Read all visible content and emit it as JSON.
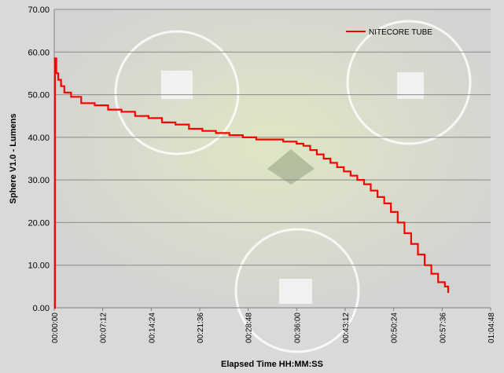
{
  "chart_data": {
    "type": "line",
    "title": "",
    "xlabel": "Elapsed Time HH:MM:SS",
    "ylabel": "Sphere V1.0 - Lumens",
    "xlim_minutes": [
      0,
      64.8
    ],
    "ylim": [
      0,
      70
    ],
    "y_ticks": [
      "0.00",
      "10.00",
      "20.00",
      "30.00",
      "40.00",
      "50.00",
      "60.00",
      "70.00"
    ],
    "x_ticks": [
      "00:00:00",
      "00:07:12",
      "00:14:24",
      "00:21:36",
      "00:28:48",
      "00:36:00",
      "00:43:12",
      "00:50:24",
      "00:57:36",
      "01:04:48"
    ],
    "grid": "horizontal",
    "legend_position": "top-right",
    "series": [
      {
        "name": "NITECORE TUBE",
        "color": "#ff0000",
        "x_minutes": [
          0,
          0.1,
          0.3,
          0.6,
          1.0,
          1.5,
          2.5,
          4.0,
          6.0,
          8.0,
          10.0,
          12.0,
          14.0,
          16.0,
          18.0,
          20.0,
          22.0,
          24.0,
          26.0,
          28.0,
          30.0,
          32.0,
          34.0,
          35.0,
          36.0,
          37.0,
          38.0,
          39.0,
          40.0,
          41.0,
          42.0,
          43.0,
          44.0,
          45.0,
          46.0,
          47.0,
          48.0,
          49.0,
          50.0,
          51.0,
          52.0,
          53.0,
          54.0,
          55.0,
          56.0,
          57.0,
          58.0,
          58.5
        ],
        "values": [
          0.0,
          58.5,
          55.0,
          53.5,
          52.0,
          50.5,
          49.5,
          48.0,
          47.5,
          46.5,
          46.0,
          45.0,
          44.5,
          43.5,
          43.0,
          42.0,
          41.5,
          41.0,
          40.5,
          40.0,
          39.5,
          39.5,
          39.0,
          39.0,
          38.5,
          38.0,
          37.0,
          36.0,
          35.0,
          34.0,
          33.0,
          32.0,
          31.0,
          30.0,
          29.0,
          27.5,
          26.0,
          24.5,
          22.5,
          20.0,
          17.5,
          15.0,
          12.5,
          10.0,
          8.0,
          6.0,
          5.0,
          3.5
        ]
      }
    ]
  }
}
